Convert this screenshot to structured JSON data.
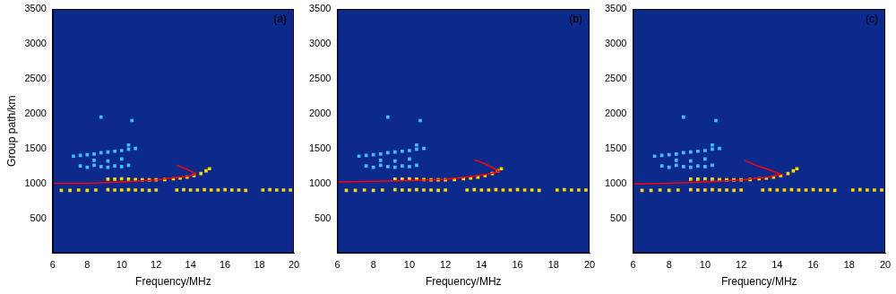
{
  "chart_data": [
    {
      "type": "scatter",
      "annotation": "(a)",
      "xlabel": "Frequency/MHz",
      "ylabel": "Group path/km",
      "xlim": [
        6,
        20
      ],
      "xticks": [
        6,
        8,
        10,
        12,
        14,
        16,
        18,
        20
      ],
      "ylim": [
        0,
        3500
      ],
      "yticks": [
        500,
        1000,
        1500,
        2000,
        2500,
        3000,
        3500
      ],
      "grid": false,
      "series": [
        {
          "type": "scatter",
          "marker": "square",
          "color": "#ffd700",
          "x": [
            6.5,
            7,
            7.5,
            8,
            8.5,
            9.2,
            9.6,
            10,
            10.4,
            10.8,
            11.2,
            11.6,
            12,
            13.2,
            13.6,
            14,
            14.4,
            14.8,
            15.2,
            15.6,
            16,
            16.4,
            16.8,
            17.2,
            18.2,
            18.6,
            19,
            19.4,
            19.8,
            9.2,
            9.6,
            10,
            10.4,
            10.8,
            11.2,
            11.6,
            12,
            12.5,
            13,
            13.4,
            13.8,
            14.2,
            14.6,
            14.9,
            15.1
          ],
          "values": [
            900,
            900,
            905,
            900,
            905,
            910,
            905,
            905,
            910,
            905,
            905,
            900,
            905,
            905,
            910,
            905,
            905,
            910,
            905,
            905,
            910,
            905,
            905,
            900,
            905,
            910,
            905,
            905,
            905,
            1060,
            1060,
            1065,
            1060,
            1055,
            1050,
            1050,
            1050,
            1055,
            1065,
            1075,
            1090,
            1110,
            1140,
            1180,
            1210
          ]
        },
        {
          "type": "scatter",
          "marker": "square",
          "color": "#3fbfff",
          "x": [
            7.2,
            7.6,
            8,
            8.4,
            8.8,
            9.2,
            9.6,
            10,
            10.4,
            10.8,
            7.6,
            8,
            8.4,
            8.8,
            9.2,
            9.6,
            10,
            10.4,
            8.4,
            9.2,
            10,
            10.4,
            10.6,
            8.8
          ],
          "values": [
            1390,
            1400,
            1410,
            1420,
            1440,
            1450,
            1460,
            1470,
            1490,
            1500,
            1250,
            1230,
            1260,
            1240,
            1230,
            1250,
            1240,
            1260,
            1330,
            1320,
            1350,
            1550,
            1900,
            1950
          ]
        },
        {
          "type": "line",
          "line_style": "solid",
          "color": "#ff0000",
          "x": [
            6,
            8,
            10,
            12,
            13,
            13.8,
            14.2,
            14.3,
            13.8,
            13.2
          ],
          "values": [
            1000,
            1000,
            1020,
            1050,
            1080,
            1100,
            1120,
            1140,
            1200,
            1260
          ]
        }
      ]
    },
    {
      "type": "scatter",
      "annotation": "(b)",
      "xlabel": "Frequency/MHz",
      "xlim": [
        6,
        20
      ],
      "xticks": [
        6,
        8,
        10,
        12,
        14,
        16,
        18,
        20
      ],
      "ylim": [
        0,
        3500
      ],
      "yticks": [
        500,
        1000,
        1500,
        2000,
        2500,
        3000,
        3500
      ],
      "grid": false,
      "series": [
        {
          "type": "scatter",
          "marker": "square",
          "color": "#ffd700",
          "x": [
            6.5,
            7,
            7.5,
            8,
            8.5,
            9.2,
            9.6,
            10,
            10.4,
            10.8,
            11.2,
            11.6,
            12,
            13.2,
            13.6,
            14,
            14.4,
            14.8,
            15.2,
            15.6,
            16,
            16.4,
            16.8,
            17.2,
            18.2,
            18.6,
            19,
            19.4,
            19.8,
            9.2,
            9.6,
            10,
            10.4,
            10.8,
            11.2,
            11.6,
            12,
            12.5,
            13,
            13.4,
            13.8,
            14.2,
            14.6,
            14.9,
            15.1
          ],
          "values": [
            900,
            900,
            905,
            900,
            905,
            910,
            905,
            905,
            910,
            905,
            905,
            900,
            905,
            905,
            910,
            905,
            905,
            910,
            905,
            905,
            910,
            905,
            905,
            900,
            905,
            910,
            905,
            905,
            905,
            1060,
            1060,
            1065,
            1060,
            1055,
            1050,
            1050,
            1050,
            1055,
            1065,
            1075,
            1090,
            1110,
            1140,
            1180,
            1210
          ]
        },
        {
          "type": "scatter",
          "marker": "square",
          "color": "#3fbfff",
          "x": [
            7.2,
            7.6,
            8,
            8.4,
            8.8,
            9.2,
            9.6,
            10,
            10.4,
            10.8,
            7.6,
            8,
            8.4,
            8.8,
            9.2,
            9.6,
            10,
            10.4,
            8.4,
            9.2,
            10,
            10.4,
            10.6,
            8.8
          ],
          "values": [
            1390,
            1400,
            1410,
            1420,
            1440,
            1450,
            1460,
            1470,
            1490,
            1500,
            1250,
            1230,
            1260,
            1240,
            1230,
            1250,
            1240,
            1260,
            1330,
            1320,
            1350,
            1550,
            1900,
            1950
          ]
        },
        {
          "type": "line",
          "line_style": "solid",
          "color": "#ff0000",
          "x": [
            6,
            8,
            10,
            12,
            13.5,
            14.5,
            15,
            14.8,
            14.2,
            13.6
          ],
          "values": [
            1020,
            1030,
            1040,
            1060,
            1100,
            1140,
            1170,
            1200,
            1280,
            1340
          ]
        }
      ]
    },
    {
      "type": "scatter",
      "annotation": "(c)",
      "xlabel": "Frequency/MHz",
      "xlim": [
        6,
        20
      ],
      "xticks": [
        6,
        8,
        10,
        12,
        14,
        16,
        18,
        20
      ],
      "ylim": [
        0,
        3500
      ],
      "yticks": [
        500,
        1000,
        1500,
        2000,
        2500,
        3000,
        3500
      ],
      "grid": false,
      "series": [
        {
          "type": "scatter",
          "marker": "square",
          "color": "#ffd700",
          "x": [
            6.5,
            7,
            7.5,
            8,
            8.5,
            9.2,
            9.6,
            10,
            10.4,
            10.8,
            11.2,
            11.6,
            12,
            13.2,
            13.6,
            14,
            14.4,
            14.8,
            15.2,
            15.6,
            16,
            16.4,
            16.8,
            17.2,
            18.2,
            18.6,
            19,
            19.4,
            19.8,
            9.2,
            9.6,
            10,
            10.4,
            10.8,
            11.2,
            11.6,
            12,
            12.5,
            13,
            13.4,
            13.8,
            14.2,
            14.6,
            14.9,
            15.1
          ],
          "values": [
            900,
            900,
            905,
            900,
            905,
            910,
            905,
            905,
            910,
            905,
            905,
            900,
            905,
            905,
            910,
            905,
            905,
            910,
            905,
            905,
            910,
            905,
            905,
            900,
            905,
            910,
            905,
            905,
            905,
            1060,
            1060,
            1065,
            1060,
            1055,
            1050,
            1050,
            1050,
            1055,
            1065,
            1075,
            1090,
            1110,
            1140,
            1180,
            1210
          ]
        },
        {
          "type": "scatter",
          "marker": "square",
          "color": "#3fbfff",
          "x": [
            7.2,
            7.6,
            8,
            8.4,
            8.8,
            9.2,
            9.6,
            10,
            10.4,
            10.8,
            7.6,
            8,
            8.4,
            8.8,
            9.2,
            9.6,
            10,
            10.4,
            8.4,
            9.2,
            10,
            10.4,
            10.6,
            8.8
          ],
          "values": [
            1390,
            1400,
            1410,
            1420,
            1440,
            1450,
            1460,
            1470,
            1490,
            1500,
            1250,
            1230,
            1260,
            1240,
            1230,
            1250,
            1240,
            1260,
            1330,
            1320,
            1350,
            1550,
            1900,
            1950
          ]
        },
        {
          "type": "line",
          "line_style": "solid",
          "color": "#ff0000",
          "x": [
            6,
            8,
            10,
            12,
            13.5,
            14.2,
            13.5,
            12.8,
            12.2
          ],
          "values": [
            990,
            1000,
            1020,
            1050,
            1090,
            1130,
            1200,
            1260,
            1330
          ]
        }
      ]
    }
  ]
}
